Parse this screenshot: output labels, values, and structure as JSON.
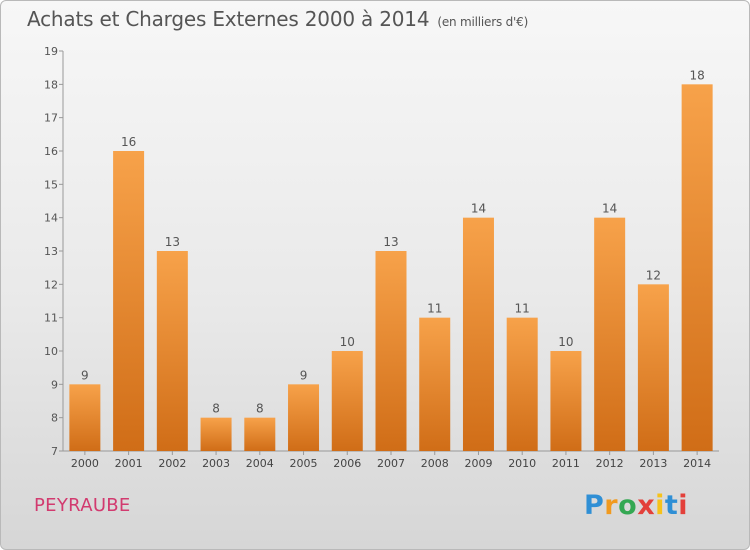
{
  "title": "Achats et Charges Externes 2000 à 2014",
  "unit": "(en milliers d'€)",
  "commune": "PEYRAUBE",
  "logo": {
    "letters": [
      "P",
      "r",
      "o",
      "x",
      "i",
      "t",
      "i"
    ],
    "colors": [
      "#2f8fd5",
      "#f19a1f",
      "#34a853",
      "#e3403a",
      "#f6c21a",
      "#2f8fd5",
      "#e3403a"
    ]
  },
  "chart_data": {
    "type": "bar",
    "categories": [
      "2000",
      "2001",
      "2002",
      "2003",
      "2004",
      "2005",
      "2006",
      "2007",
      "2008",
      "2009",
      "2010",
      "2011",
      "2012",
      "2013",
      "2014"
    ],
    "values": [
      9,
      16,
      13,
      8,
      8,
      9,
      10,
      13,
      11,
      14,
      11,
      10,
      14,
      12,
      18
    ],
    "ylim": [
      7,
      19
    ],
    "yticks": [
      7,
      8,
      9,
      10,
      11,
      12,
      13,
      14,
      15,
      16,
      17,
      18,
      19
    ],
    "grid": false,
    "bar_color_top": "#f7a24a",
    "bar_color_bottom": "#d06d17"
  }
}
